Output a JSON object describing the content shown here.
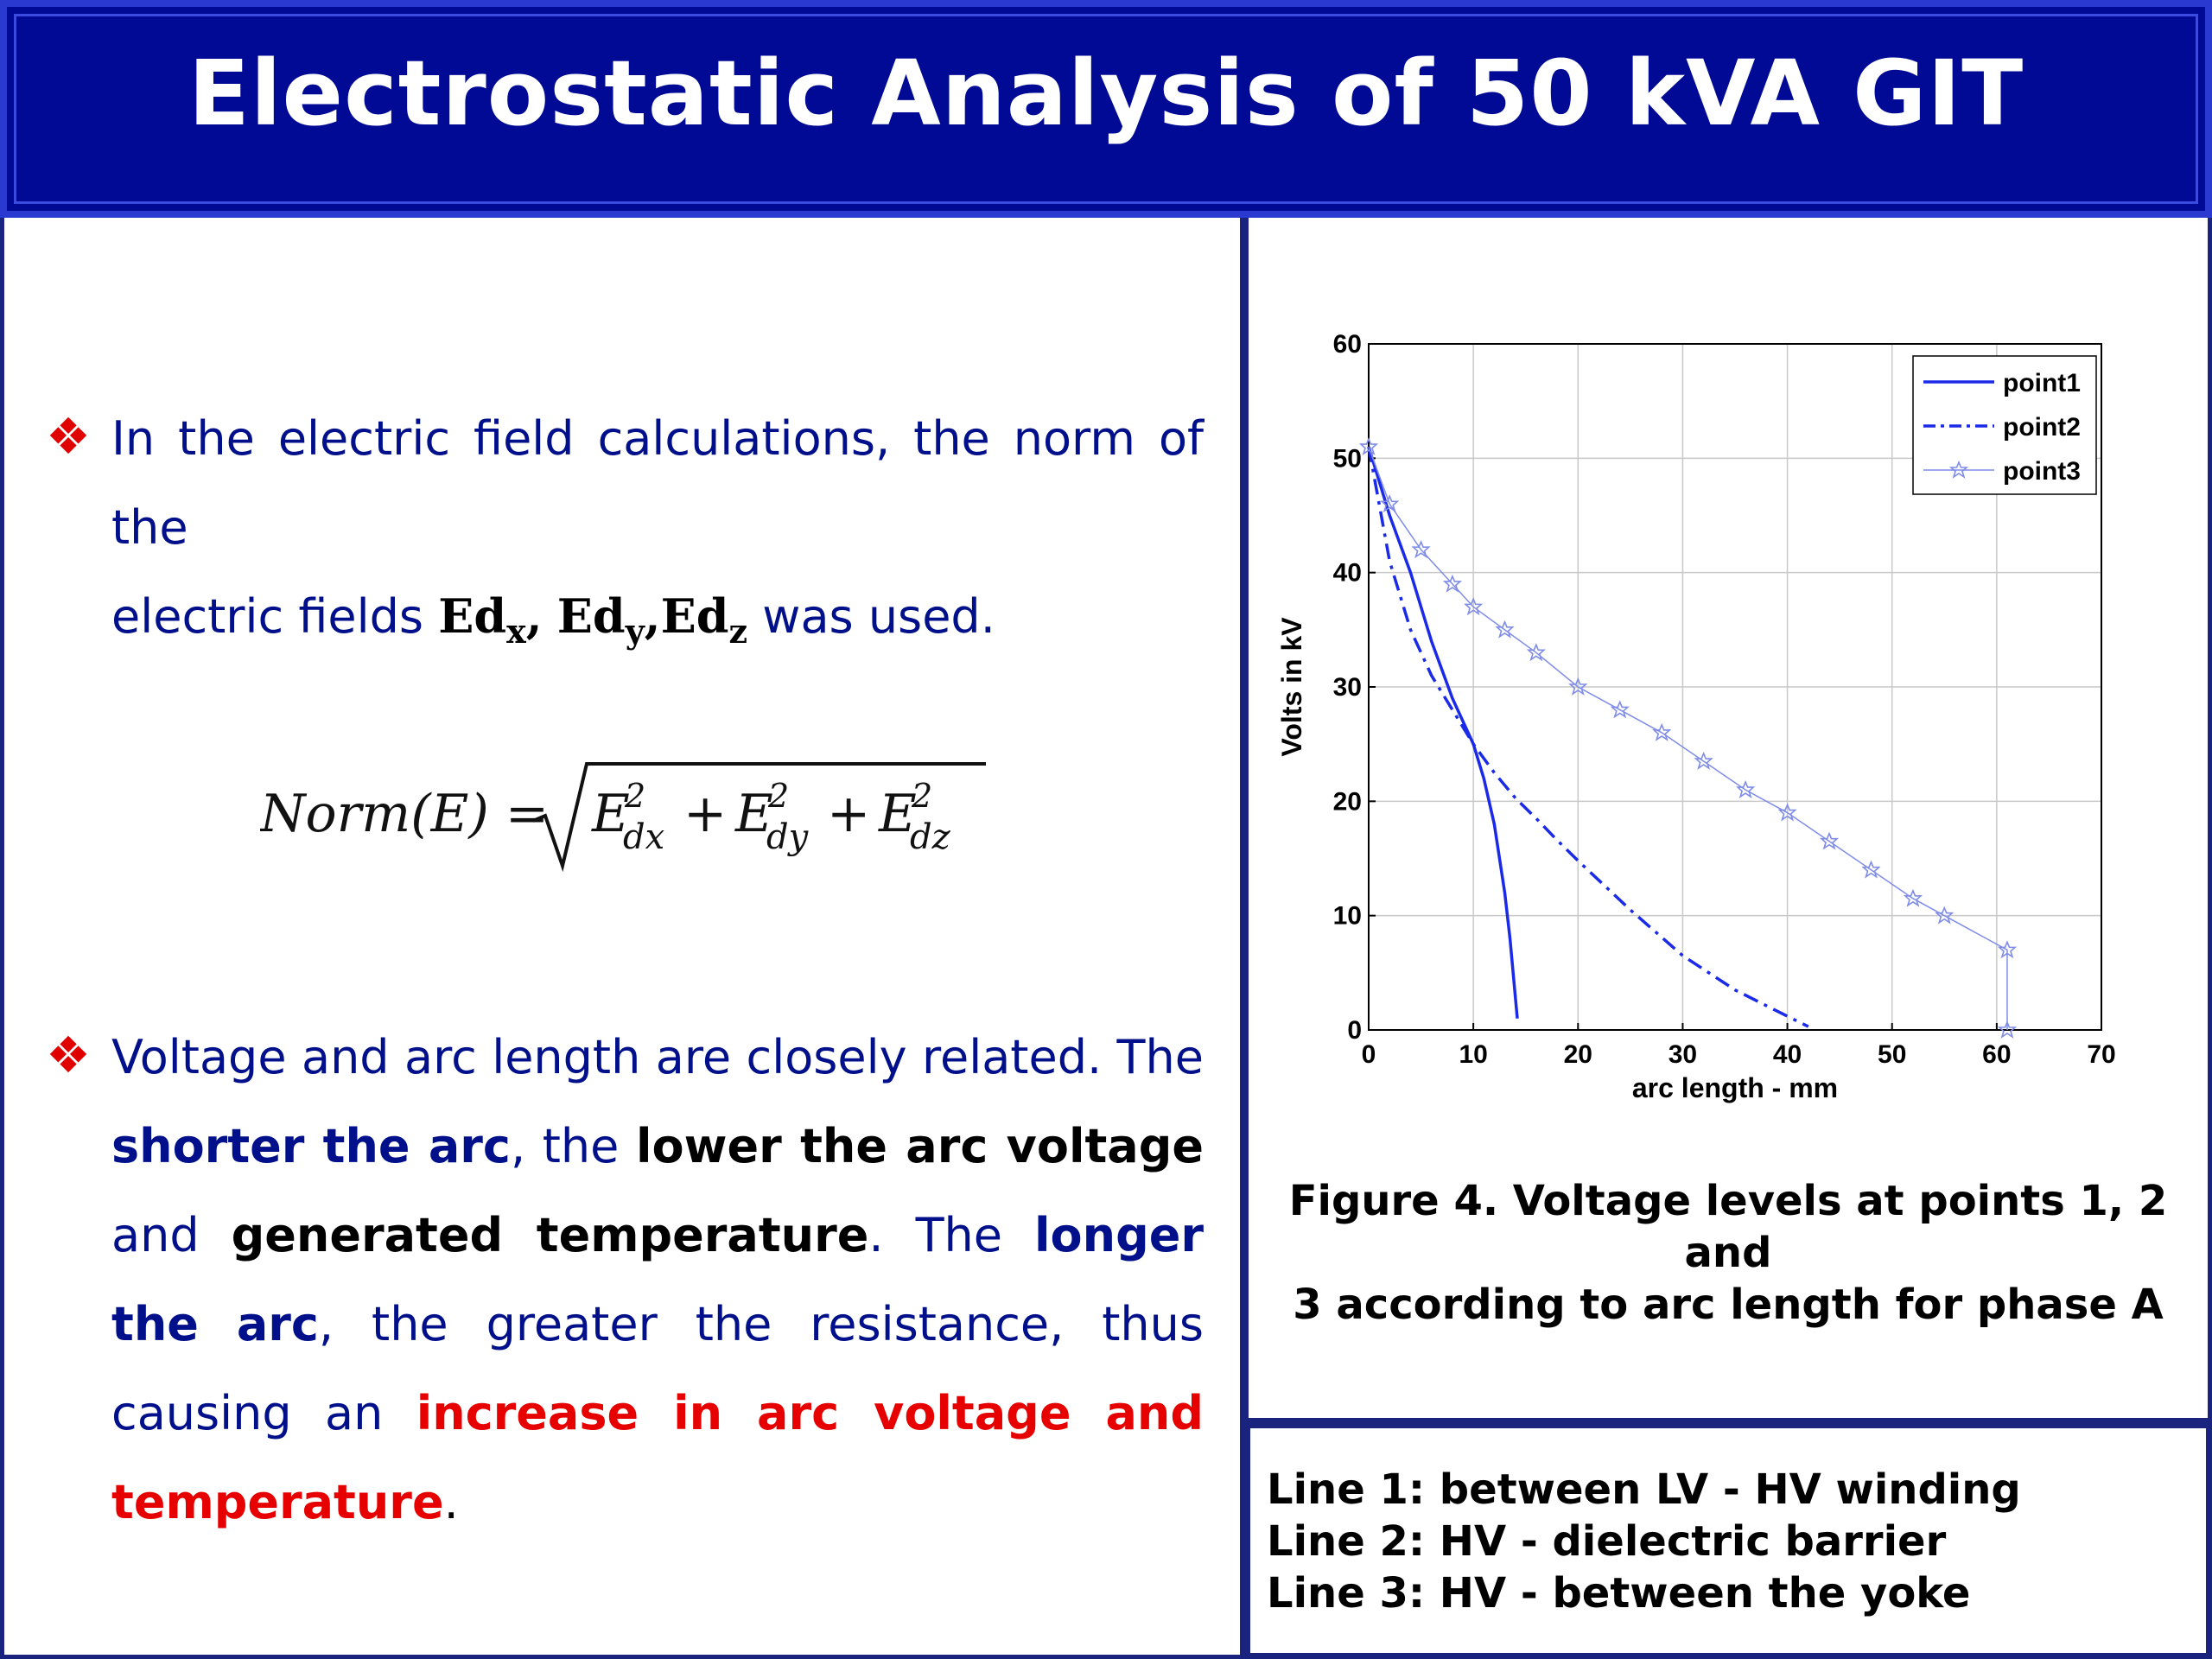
{
  "header": {
    "title": "Electrostatic Analysis of 50 kVA GIT"
  },
  "left": {
    "bullet_glyph": "❖",
    "p1": {
      "text1": "In the electric field calculations, the norm of the",
      "text2": "electric fields",
      "ed": "Ed",
      "sub_x": "x",
      "sep1": ",",
      "sub_y": "y",
      "sep2": ",",
      "sub_z": "z",
      "text3": "was used."
    },
    "formula": {
      "lhs": "Norm(E) =",
      "e": "E",
      "sq": "2",
      "dx": "dx",
      "dy": "dy",
      "dz": "dz",
      "plus": "+"
    },
    "p2": {
      "t1": "Voltage and arc length are closely related. The",
      "b1": "shorter the arc",
      "t2": ", the ",
      "b2": "lower the arc voltage",
      "t3": "and ",
      "b3": "generated temperature",
      "t4": ". The ",
      "b4": "longer the",
      "b5": "arc",
      "t5": ", the greater the resistance, thus causing an",
      "r1": "increase in arc voltage and temperature",
      "t6": "."
    }
  },
  "figure_caption": {
    "line1": "Figure 4. Voltage levels at points 1, 2 and",
    "line2": "3 according to arc length for phase A"
  },
  "lines_box": {
    "line1": "Line 1: between LV - HV winding",
    "line2": "Line 2: HV - dielectric barrier",
    "line3": "Line 3: HV - between the yoke"
  },
  "chart_data": {
    "type": "line",
    "title": "",
    "xlabel": "arc length - mm",
    "ylabel": "Volts in kV",
    "xlim": [
      0,
      70
    ],
    "ylim": [
      0,
      60
    ],
    "xticks": [
      0,
      10,
      20,
      30,
      40,
      50,
      60,
      70
    ],
    "yticks": [
      0,
      10,
      20,
      30,
      40,
      50,
      60
    ],
    "grid": true,
    "legend_position": "top-right",
    "series": [
      {
        "name": "point1",
        "style": "solid",
        "color": "#1a2ae8",
        "x": [
          0,
          2,
          4,
          6,
          8,
          10,
          11,
          12,
          13,
          13.5,
          14,
          14.2
        ],
        "y": [
          51,
          45,
          40,
          34,
          29,
          25,
          22,
          18,
          12,
          8,
          3,
          1
        ]
      },
      {
        "name": "point2",
        "style": "dashdot",
        "color": "#1a2ae8",
        "x": [
          0,
          2,
          4,
          6,
          8,
          10,
          12,
          14,
          16,
          18,
          20,
          25,
          30,
          35,
          40,
          42
        ],
        "y": [
          51,
          41,
          35,
          31,
          28,
          25,
          22.5,
          20.3,
          18.5,
          16.6,
          14.8,
          10.5,
          6.5,
          3.5,
          1.2,
          0.3
        ]
      },
      {
        "name": "point3",
        "style": "marker",
        "color": "#7f8ce8",
        "x": [
          0,
          2,
          5,
          8,
          10,
          13,
          16,
          20,
          24,
          28,
          32,
          36,
          40,
          44,
          48,
          52,
          55,
          61,
          61
        ],
        "y": [
          51,
          46,
          42,
          39,
          37,
          35,
          33,
          30,
          28,
          26,
          23.5,
          21,
          19,
          16.5,
          14,
          11.5,
          10,
          7,
          0
        ]
      }
    ]
  }
}
